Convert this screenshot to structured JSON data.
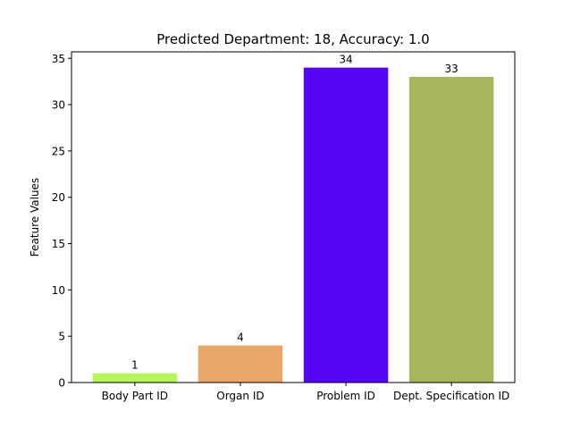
{
  "chart_data": {
    "type": "bar",
    "title": "Predicted Department: 18, Accuracy: 1.0",
    "xlabel": "",
    "ylabel": "Feature Values",
    "categories": [
      "Body Part ID",
      "Organ ID",
      "Problem ID",
      "Dept. Specification ID"
    ],
    "values": [
      1,
      4,
      34,
      33
    ],
    "data_labels": [
      "1",
      "4",
      "34",
      "33"
    ],
    "colors": [
      "#b5f55d",
      "#e8a667",
      "#5606f5",
      "#a5b75a"
    ],
    "ylim": [
      0,
      35.7
    ],
    "yticks": [
      0,
      5,
      10,
      15,
      20,
      25,
      30,
      35
    ],
    "ytick_labels": [
      "0",
      "5",
      "10",
      "15",
      "20",
      "25",
      "30",
      "35"
    ],
    "grid": false,
    "legend": "none"
  }
}
